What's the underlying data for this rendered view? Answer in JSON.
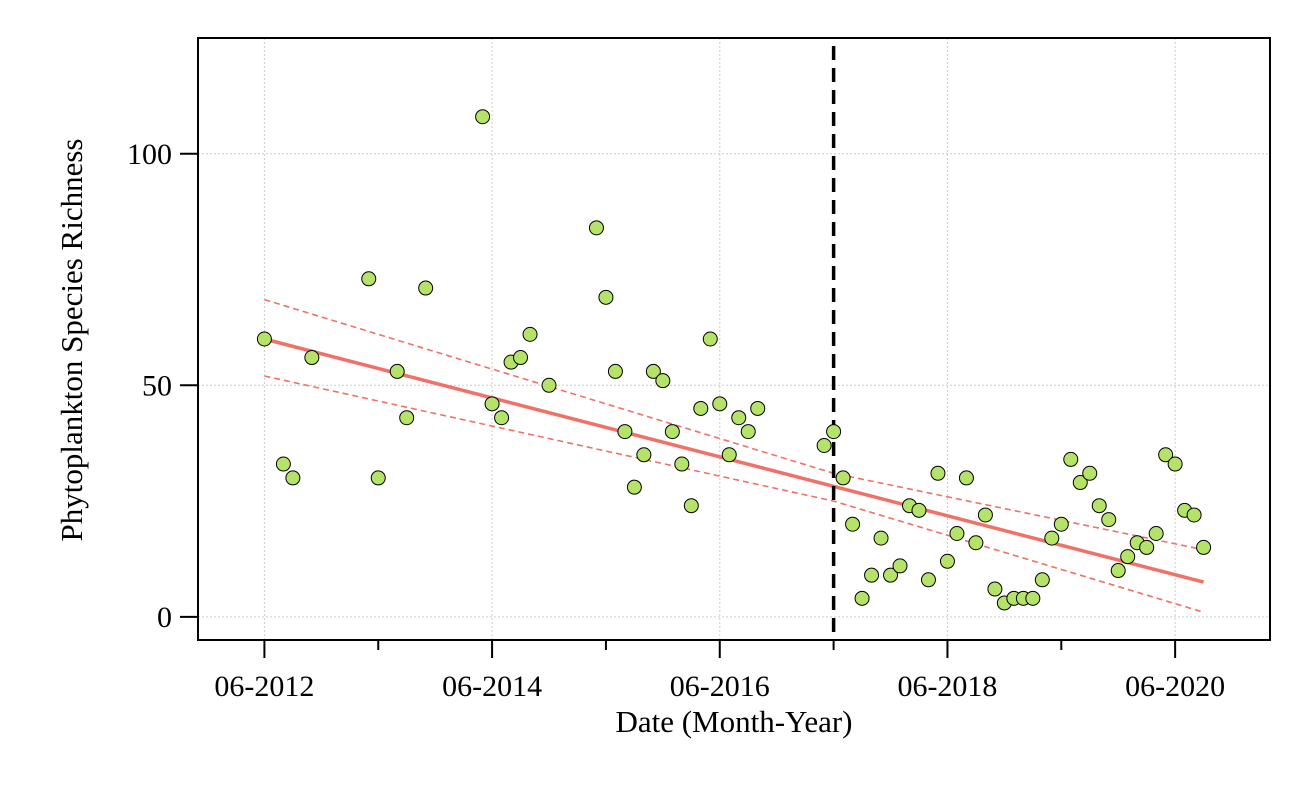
{
  "chart_data": {
    "type": "scatter",
    "title": "",
    "xlabel": "Date (Month-Year)",
    "ylabel": "Phytoplankton Species Richness",
    "x_tick_labels": [
      "06-2012",
      "06-2014",
      "06-2016",
      "06-2018",
      "06-2020"
    ],
    "x_tick_values": [
      "2012-06",
      "2014-06",
      "2016-06",
      "2018-06",
      "2020-06"
    ],
    "x_minor_tick_values": [
      "2013-06",
      "2015-06",
      "2017-06",
      "2019-06"
    ],
    "y_tick_labels": [
      "0",
      "50",
      "100"
    ],
    "y_tick_values": [
      0,
      50,
      100
    ],
    "xlim": [
      "2011-11",
      "2021-04"
    ],
    "ylim": [
      -5,
      125
    ],
    "grid": true,
    "colors": {
      "points_fill": "#b5e36a",
      "points_stroke": "#000000",
      "trend": "#f07167",
      "grid": "#cccccc",
      "breakpoint": "#000000"
    },
    "breakpoint_date": "2017-06",
    "points": [
      [
        "2012-06",
        60
      ],
      [
        "2012-08",
        33
      ],
      [
        "2012-09",
        30
      ],
      [
        "2012-11",
        56
      ],
      [
        "2013-05",
        73
      ],
      [
        "2013-06",
        30
      ],
      [
        "2013-08",
        53
      ],
      [
        "2013-09",
        43
      ],
      [
        "2013-11",
        71
      ],
      [
        "2014-05",
        108
      ],
      [
        "2014-06",
        46
      ],
      [
        "2014-07",
        43
      ],
      [
        "2014-08",
        55
      ],
      [
        "2014-09",
        56
      ],
      [
        "2014-10",
        61
      ],
      [
        "2014-12",
        50
      ],
      [
        "2015-05",
        84
      ],
      [
        "2015-06",
        69
      ],
      [
        "2015-07",
        53
      ],
      [
        "2015-08",
        40
      ],
      [
        "2015-09",
        28
      ],
      [
        "2015-10",
        35
      ],
      [
        "2015-11",
        53
      ],
      [
        "2015-12",
        51
      ],
      [
        "2016-01",
        40
      ],
      [
        "2016-02",
        33
      ],
      [
        "2016-03",
        24
      ],
      [
        "2016-04",
        45
      ],
      [
        "2016-05",
        60
      ],
      [
        "2016-06",
        46
      ],
      [
        "2016-07",
        35
      ],
      [
        "2016-08",
        43
      ],
      [
        "2016-09",
        40
      ],
      [
        "2016-10",
        45
      ],
      [
        "2017-05",
        37
      ],
      [
        "2017-06",
        40
      ],
      [
        "2017-07",
        30
      ],
      [
        "2017-08",
        20
      ],
      [
        "2017-09",
        4
      ],
      [
        "2017-10",
        9
      ],
      [
        "2017-11",
        17
      ],
      [
        "2017-12",
        9
      ],
      [
        "2018-01",
        11
      ],
      [
        "2018-02",
        24
      ],
      [
        "2018-03",
        23
      ],
      [
        "2018-04",
        8
      ],
      [
        "2018-05",
        31
      ],
      [
        "2018-06",
        12
      ],
      [
        "2018-07",
        18
      ],
      [
        "2018-08",
        30
      ],
      [
        "2018-09",
        16
      ],
      [
        "2018-10",
        22
      ],
      [
        "2018-11",
        6
      ],
      [
        "2018-12",
        3
      ],
      [
        "2019-01",
        4
      ],
      [
        "2019-02",
        4
      ],
      [
        "2019-03",
        4
      ],
      [
        "2019-04",
        8
      ],
      [
        "2019-05",
        17
      ],
      [
        "2019-06",
        20
      ],
      [
        "2019-07",
        34
      ],
      [
        "2019-08",
        29
      ],
      [
        "2019-09",
        31
      ],
      [
        "2019-10",
        24
      ],
      [
        "2019-11",
        21
      ],
      [
        "2019-12",
        10
      ],
      [
        "2020-01",
        13
      ],
      [
        "2020-02",
        16
      ],
      [
        "2020-03",
        15
      ],
      [
        "2020-04",
        18
      ],
      [
        "2020-05",
        35
      ],
      [
        "2020-06",
        33
      ],
      [
        "2020-07",
        23
      ],
      [
        "2020-08",
        22
      ],
      [
        "2020-09",
        15
      ]
    ],
    "trend_line": [
      [
        "2012-06",
        60
      ],
      [
        "2020-09",
        7.5
      ]
    ],
    "confidence_upper": [
      [
        "2012-06",
        68.5
      ],
      [
        "2017-06",
        31
      ],
      [
        "2020-09",
        14.5
      ]
    ],
    "confidence_lower": [
      [
        "2012-06",
        52
      ],
      [
        "2017-06",
        25
      ],
      [
        "2020-09",
        1
      ]
    ]
  }
}
